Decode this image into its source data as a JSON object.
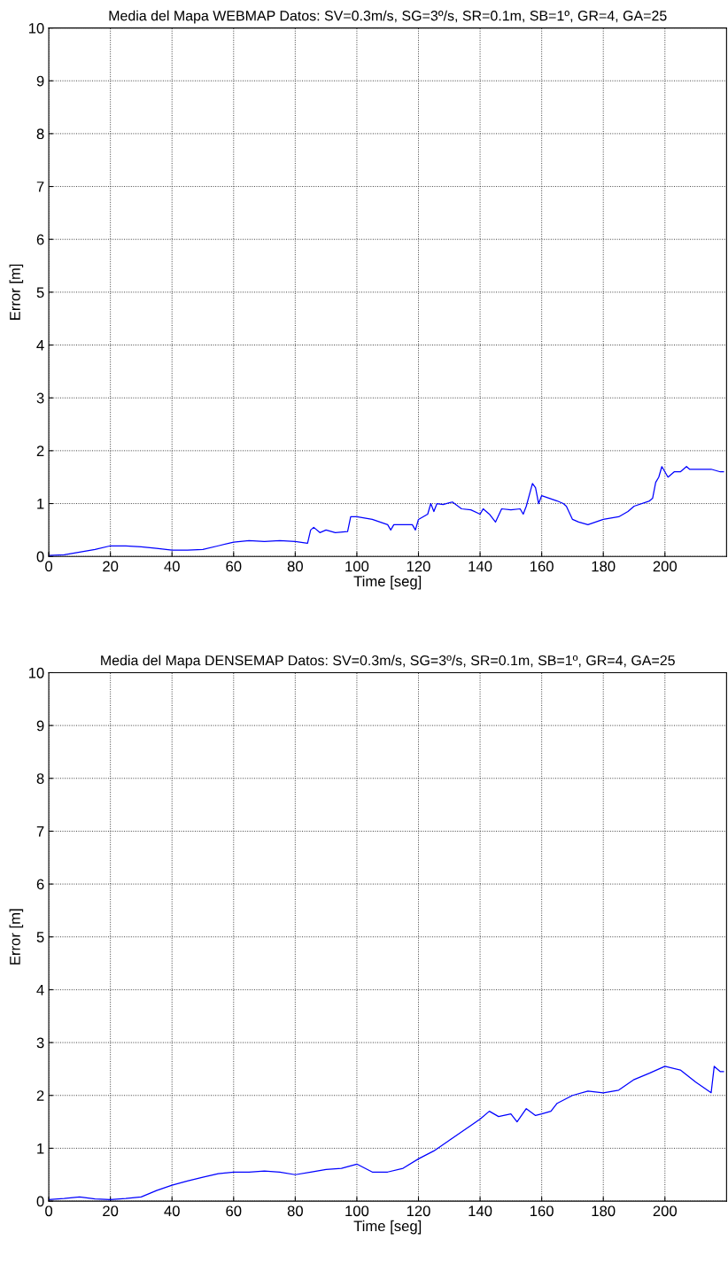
{
  "chart_data": [
    {
      "type": "line",
      "title": "Media del Mapa WEBMAP Datos: SV=0.3m/s, SG=3º/s, SR=0.1m, SB=1º, GR=4, GA=25",
      "xlabel": "Time [seg]",
      "ylabel": "Error [m]",
      "xlim": [
        0,
        220
      ],
      "ylim": [
        0,
        10
      ],
      "xticks": [
        0,
        20,
        40,
        60,
        80,
        100,
        120,
        140,
        160,
        180,
        200
      ],
      "yticks": [
        0,
        1,
        2,
        3,
        4,
        5,
        6,
        7,
        8,
        9,
        10
      ],
      "grid": true,
      "line_style": "solid",
      "series": [
        {
          "color": "#0000ff",
          "x": [
            0,
            5,
            10,
            15,
            20,
            25,
            30,
            35,
            40,
            45,
            50,
            55,
            60,
            65,
            70,
            75,
            80,
            84,
            85,
            86,
            88,
            90,
            93,
            97,
            98,
            100,
            105,
            110,
            111,
            112,
            118,
            119,
            120,
            123,
            124,
            125,
            126,
            128,
            131,
            134,
            137,
            140,
            141,
            143,
            145,
            147,
            150,
            153,
            154,
            155,
            157,
            158,
            159,
            160,
            165,
            167,
            168,
            170,
            172,
            175,
            180,
            185,
            188,
            190,
            195,
            196,
            197,
            198,
            199,
            201,
            203,
            205,
            207,
            208,
            210,
            215,
            218,
            219
          ],
          "values": [
            0.02,
            0.03,
            0.08,
            0.13,
            0.2,
            0.2,
            0.18,
            0.15,
            0.12,
            0.12,
            0.13,
            0.2,
            0.27,
            0.3,
            0.28,
            0.3,
            0.28,
            0.25,
            0.5,
            0.55,
            0.45,
            0.5,
            0.45,
            0.47,
            0.75,
            0.75,
            0.7,
            0.6,
            0.5,
            0.6,
            0.6,
            0.5,
            0.7,
            0.8,
            1.0,
            0.85,
            1.0,
            0.98,
            1.03,
            0.9,
            0.88,
            0.8,
            0.9,
            0.8,
            0.65,
            0.9,
            0.88,
            0.9,
            0.8,
            0.95,
            1.38,
            1.3,
            1.0,
            1.15,
            1.05,
            1.0,
            0.95,
            0.7,
            0.65,
            0.6,
            0.7,
            0.75,
            0.85,
            0.95,
            1.05,
            1.1,
            1.4,
            1.5,
            1.7,
            1.5,
            1.6,
            1.6,
            1.7,
            1.65,
            1.65,
            1.65,
            1.6,
            1.6
          ]
        }
      ]
    },
    {
      "type": "line",
      "title": "Media del Mapa DENSEMAP Datos: SV=0.3m/s, SG=3º/s, SR=0.1m, SB=1º, GR=4, GA=25",
      "xlabel": "Time [seg]",
      "ylabel": "Error [m]",
      "xlim": [
        0,
        220
      ],
      "ylim": [
        0,
        10
      ],
      "xticks": [
        0,
        20,
        40,
        60,
        80,
        100,
        120,
        140,
        160,
        180,
        200
      ],
      "yticks": [
        0,
        1,
        2,
        3,
        4,
        5,
        6,
        7,
        8,
        9,
        10
      ],
      "grid": true,
      "line_style": "solid",
      "series": [
        {
          "color": "#0000ff",
          "x": [
            0,
            5,
            10,
            15,
            20,
            25,
            30,
            35,
            40,
            45,
            50,
            55,
            60,
            65,
            70,
            75,
            80,
            85,
            90,
            95,
            100,
            105,
            110,
            115,
            120,
            125,
            130,
            135,
            140,
            143,
            146,
            150,
            152,
            155,
            158,
            160,
            163,
            165,
            170,
            175,
            180,
            185,
            190,
            195,
            200,
            205,
            210,
            215,
            216,
            218,
            219
          ],
          "values": [
            0.03,
            0.05,
            0.08,
            0.04,
            0.03,
            0.05,
            0.08,
            0.2,
            0.3,
            0.38,
            0.45,
            0.52,
            0.55,
            0.55,
            0.57,
            0.55,
            0.5,
            0.55,
            0.6,
            0.62,
            0.7,
            0.55,
            0.55,
            0.62,
            0.8,
            0.95,
            1.15,
            1.35,
            1.55,
            1.7,
            1.6,
            1.65,
            1.5,
            1.75,
            1.62,
            1.65,
            1.7,
            1.85,
            2.0,
            2.08,
            2.05,
            2.1,
            2.3,
            2.42,
            2.55,
            2.48,
            2.25,
            2.05,
            2.55,
            2.45,
            2.45
          ]
        }
      ]
    }
  ]
}
